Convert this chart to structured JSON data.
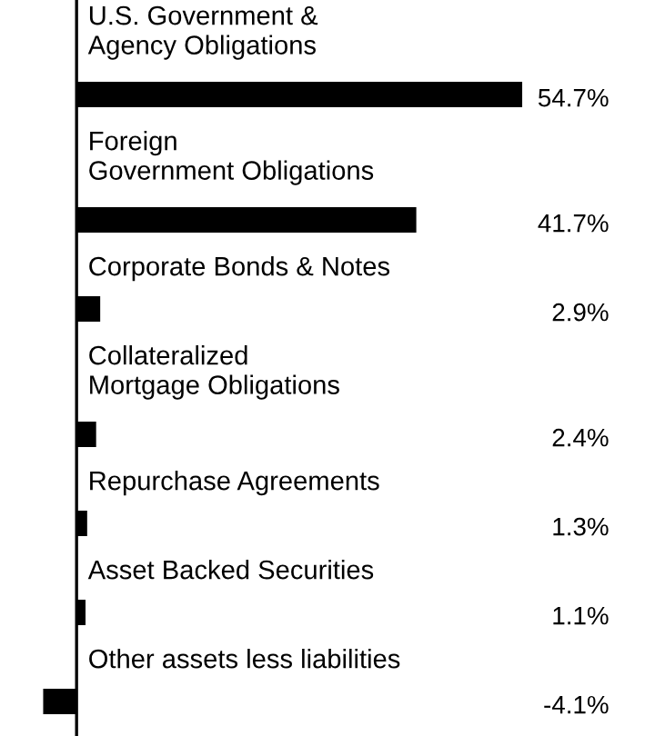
{
  "chart_data": {
    "type": "bar",
    "orientation": "horizontal",
    "categories": [
      "U.S. Government &\nAgency Obligations",
      "Foreign\nGovernment Obligations",
      "Corporate Bonds & Notes",
      "Collateralized\nMortgage Obligations",
      "Repurchase Agreements",
      "Asset Backed Securities",
      "Other assets less liabilities"
    ],
    "values": [
      54.7,
      41.7,
      2.9,
      2.4,
      1.3,
      1.1,
      -4.1
    ],
    "value_labels": [
      "54.7%",
      "41.7%",
      "2.9%",
      "2.4%",
      "1.3%",
      "1.1%",
      "-4.1%"
    ],
    "color": "#000000",
    "xlim": [
      -9.4,
      71
    ]
  }
}
